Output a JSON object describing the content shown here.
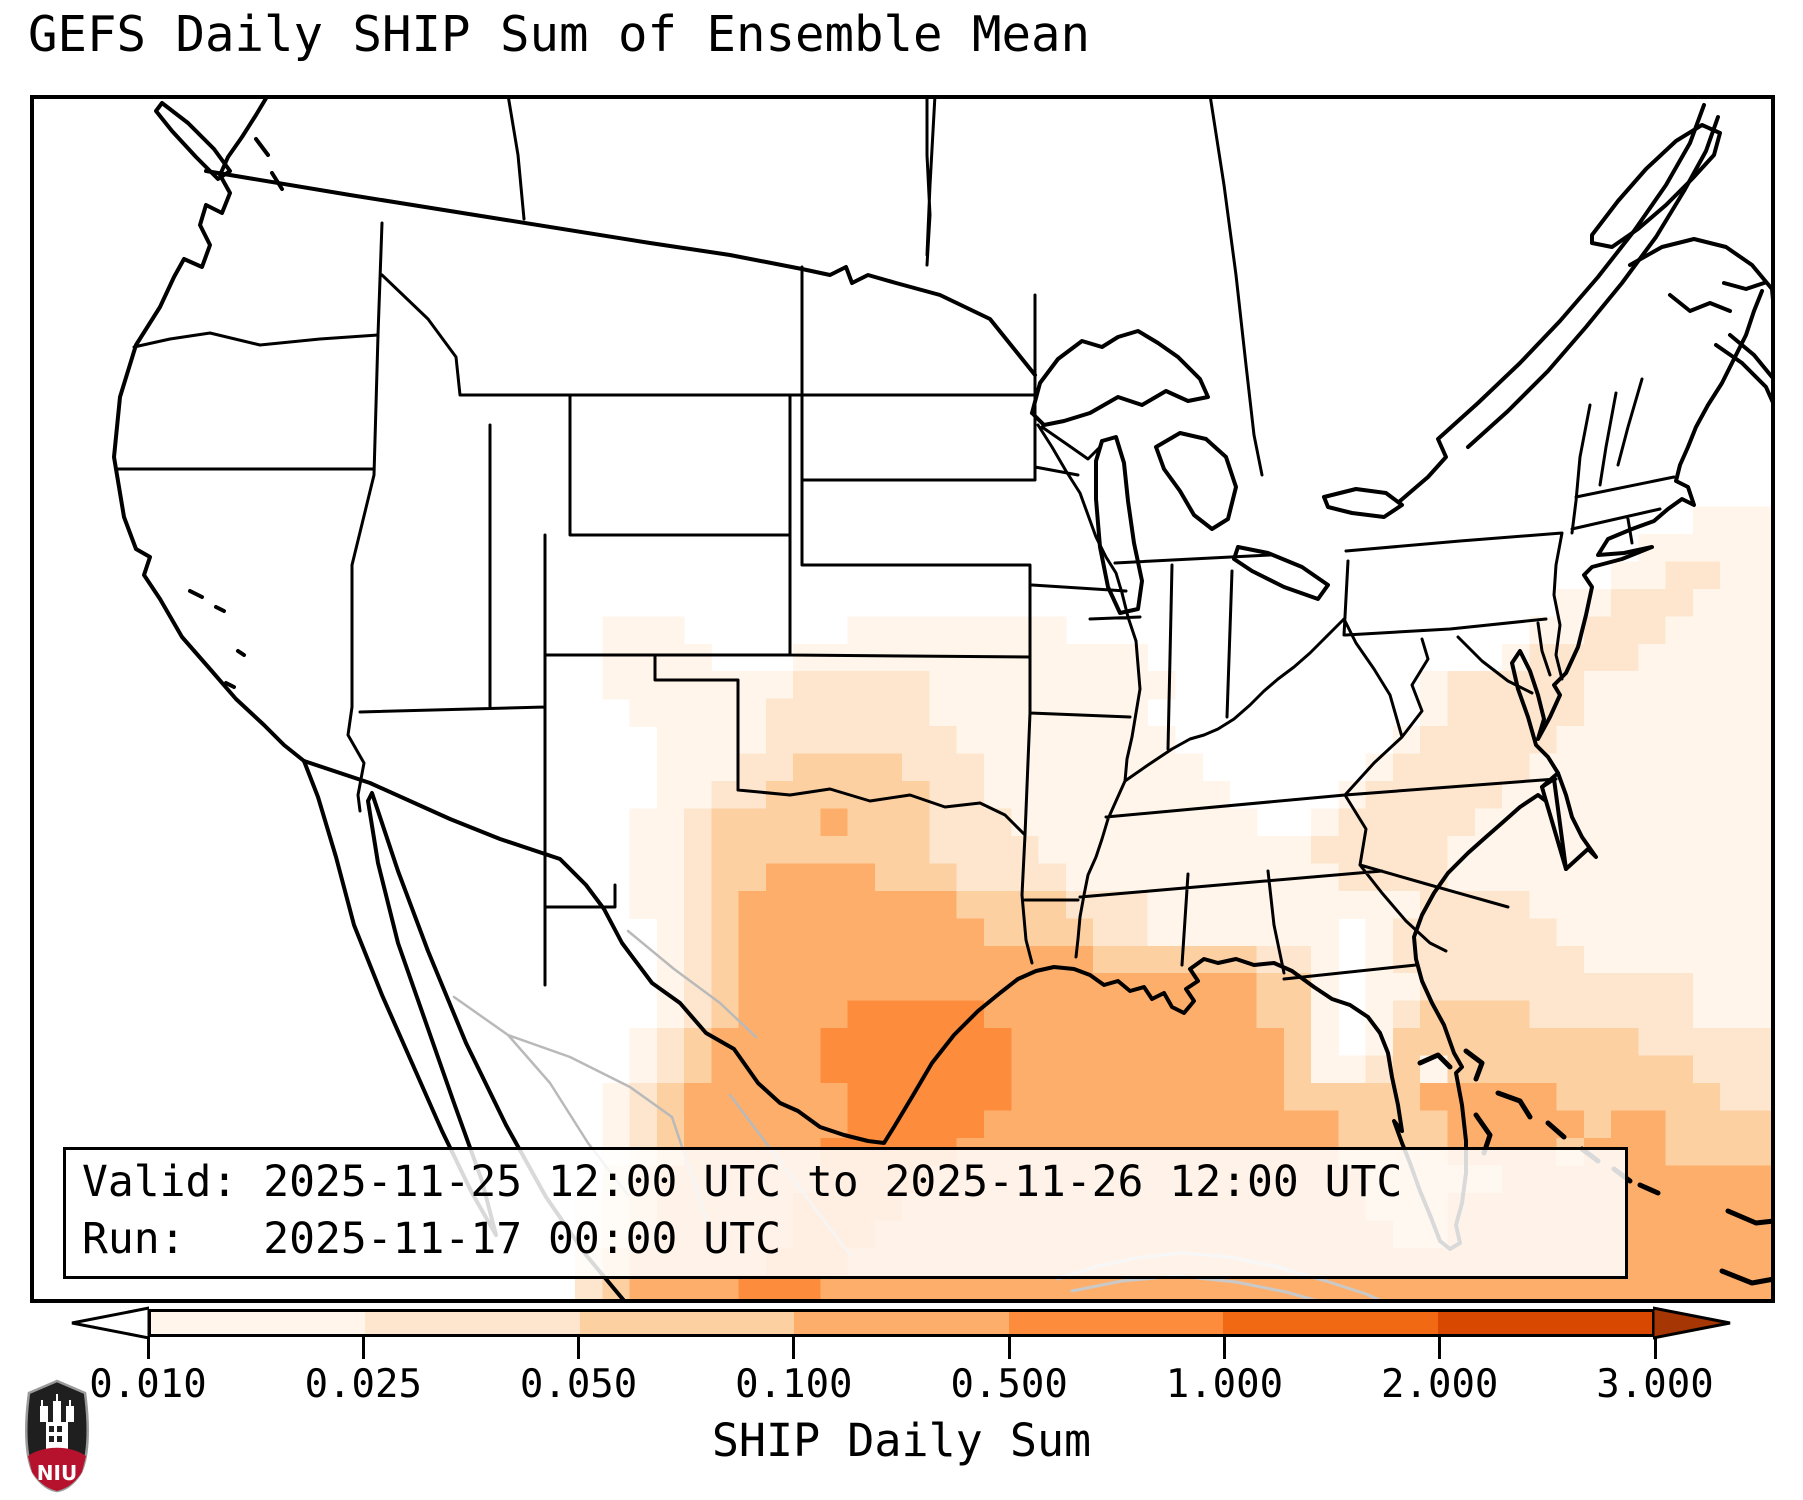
{
  "title": "GEFS Daily SHIP Sum of Ensemble Mean",
  "info_box": {
    "valid_line": "Valid: 2025-11-25 12:00 UTC to 2025-11-26 12:00 UTC",
    "run_line": "Run:   2025-11-17 00:00 UTC"
  },
  "colorbar": {
    "label": "SHIP Daily Sum",
    "ticks": [
      "0.010",
      "0.025",
      "0.050",
      "0.100",
      "0.500",
      "1.000",
      "2.000",
      "3.000"
    ],
    "segment_colors": [
      "#fff5eb",
      "#fee6ce",
      "#fdd0a2",
      "#fdae6b",
      "#fd8d3c",
      "#f16913",
      "#d94801"
    ],
    "under_color": "#ffffff",
    "over_color": "#a63603"
  },
  "logo": {
    "text": "NIU",
    "shield_color": "#1f1f1f",
    "band_color": "#b6122e"
  },
  "chart_data": {
    "type": "heatmap",
    "title": "GEFS Daily SHIP Sum of Ensemble Mean",
    "parameter": "SHIP Daily Sum",
    "valid": "2025-11-25 12:00 UTC to 2025-11-26 12:00 UTC",
    "run": "2025-11-17 00:00 UTC",
    "levels": [
      0.01,
      0.025,
      0.05,
      0.1,
      0.5,
      1.0,
      2.0,
      3.0
    ],
    "palette": [
      "#ffffff",
      "#fff5eb",
      "#fee6ce",
      "#fdd0a2",
      "#fdae6b",
      "#fd8d3c",
      "#f16913",
      "#d94801",
      "#a63603"
    ],
    "legend_position": "bottom",
    "grid": {
      "cols": 64,
      "rows": 44,
      "comment": "digit = color level index per cell, row 0 = map top",
      "cell_values": [
        "0000000000000000000000000000000000000000000000000000000000000000",
        "0000000000000000000000000000000000000000000000000000000000000000",
        "0000000000000000000000000000000000000000000000000000000000000000",
        "0000000000000000000000000000000000000000000000000000000000000000",
        "0000000000000000000000000000000000000000000000000000000000000000",
        "0000000000000000000000000000000000000000000000000000000000000000",
        "0000000000000000000000000000000000000000000000000000000000000000",
        "0000000000000000000000000000000000000000000000000000000000000000",
        "0000000000000000000000000000000000000000000000000000000000000000",
        "0000000000000000000000000000000000000000000000000000000000000000",
        "0000000000000000000000000000000000000000000000000000000000000000",
        "0000000000000000000000000000000000000000000000000000000000000000",
        "0000000000000000000000000000000000000000000000000000000000000000",
        "0000000000000000000000000000000000000000000000000000000000000000",
        "0000000000000000000000000000000000000000000000000000000000000000",
        "0000000000000000000000000000000000000000000000000000000000000111",
        "0000000000000000000000000000000000000000000000000000000000011111",
        "0000000000000000000000000000000000000000000000000000000000112211",
        "0000000000000000000000000000000000000000000000000000000011222111",
        "0000000000000000000001110000001111111100000000000000000112221111",
        "0000000000000000000001111000111111111111100000000000001222211111",
        "0000000000000000000001111111222221111111110000000001222221111111",
        "0000000000000000000000111112222221111111100000000001222221111111",
        "0000000000000000000000011112222222111111110000000012222211111111",
        "0000000000000000000000011122333322211111111000000122222111111111",
        "0000000000000000000000011223333332211111111100001222221111111111",
        "0000000000000000000000112333343332221111111110012222211111111111",
        "0000000000000000000000112333333332222111111111122222111111111111",
        "0000000000000000000000112334444333222211111111112222111111111111",
        "0000000000000000000000112344444444333322211111111112222111111111",
        "0000000000000000000000012344444444433332211111110122222211111111",
        "0000000000000000000000012344444444444443333332210122222221111111",
        "0000000000000000000000012344444444444444444443310112222222222111",
        "0000000000000000000000012344445555544444444443310123333222222111",
        "0000000000000000000000123444455555554444444444310133333333322222",
        "0000000000000000000000123444455555554444444444311231333333333222",
        "0000000000000000000001234444445555554444444444333334444433333322",
        "0000000000000000000001234444445555544444444444443333444443443333",
        "0000000000000000000001234444455555444444444444443333444434443333",
        "0000000000000000000002344444455554444444444444444333334444444444",
        "0000000000000000000012344444555544444444444444444333444444444444",
        "0000000000000000000012344444555444444444444444444433444444444444",
        "0000000000000000000023444445554444444444444444444444444444444444",
        "0000000000000000000023444455544444444444444444444444444444444444"
      ]
    }
  }
}
